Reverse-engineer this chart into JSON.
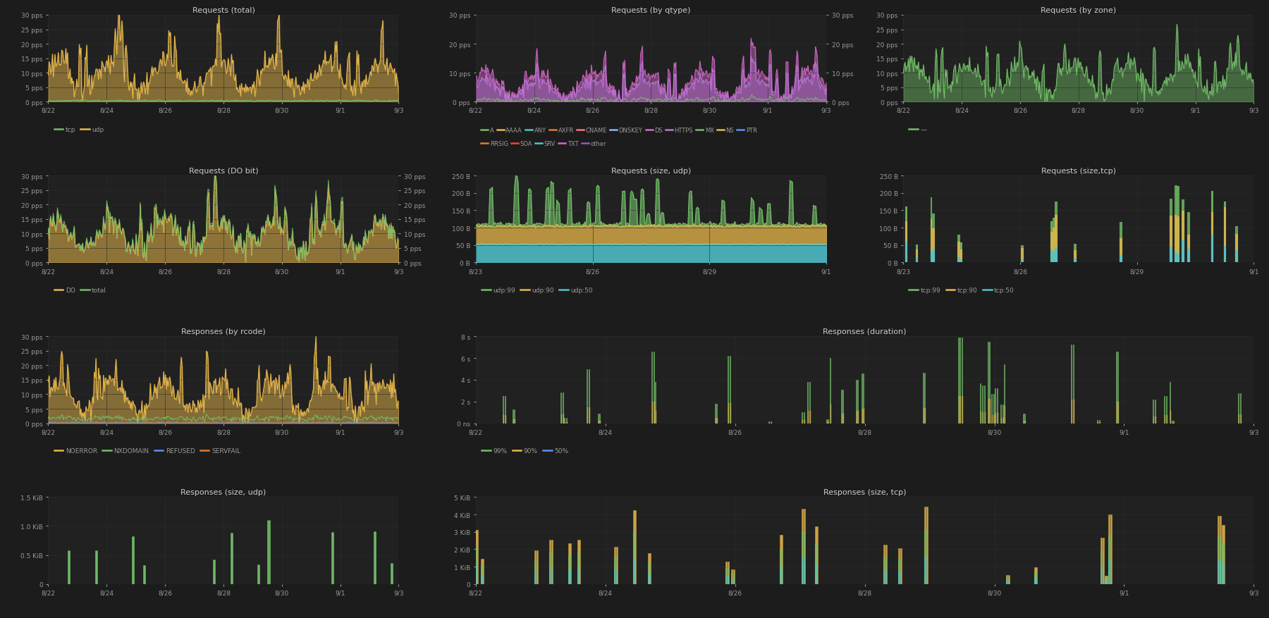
{
  "bg_color": "#1c1c1c",
  "panel_bg": "#212121",
  "grid_color": "#2d2d2d",
  "text_color": "#9a9a9a",
  "title_color": "#cccccc",
  "colors": {
    "yellow": "#e8b84b",
    "green": "#73bf69",
    "blue": "#5794f2",
    "cyan": "#4fc4cf",
    "purple": "#b877d9",
    "magenta": "#d467c8",
    "orange": "#e07b39",
    "red": "#f44336",
    "light_blue": "#8ab8ff",
    "pink": "#ff7383"
  },
  "legend_qtype": [
    {
      "label": "A",
      "color": "#73bf69"
    },
    {
      "label": "AAAA",
      "color": "#e8b84b"
    },
    {
      "label": "ANY",
      "color": "#4fc4cf"
    },
    {
      "label": "AXFR",
      "color": "#e07b39"
    },
    {
      "label": "CNAME",
      "color": "#ff7383"
    },
    {
      "label": "DNSKEY",
      "color": "#8ab8ff"
    },
    {
      "label": "DS",
      "color": "#d467c8"
    },
    {
      "label": "HTTPS",
      "color": "#b877d9"
    },
    {
      "label": "MX",
      "color": "#73bf69"
    },
    {
      "label": "NS",
      "color": "#e8b84b"
    },
    {
      "label": "PTR",
      "color": "#5794f2"
    },
    {
      "label": "RRSIG",
      "color": "#e07b39"
    },
    {
      "label": "SOA",
      "color": "#f44336"
    },
    {
      "label": "SRV",
      "color": "#4fc4cf"
    },
    {
      "label": "TXT",
      "color": "#d467c8"
    },
    {
      "label": "other",
      "color": "#9b56bb"
    }
  ]
}
